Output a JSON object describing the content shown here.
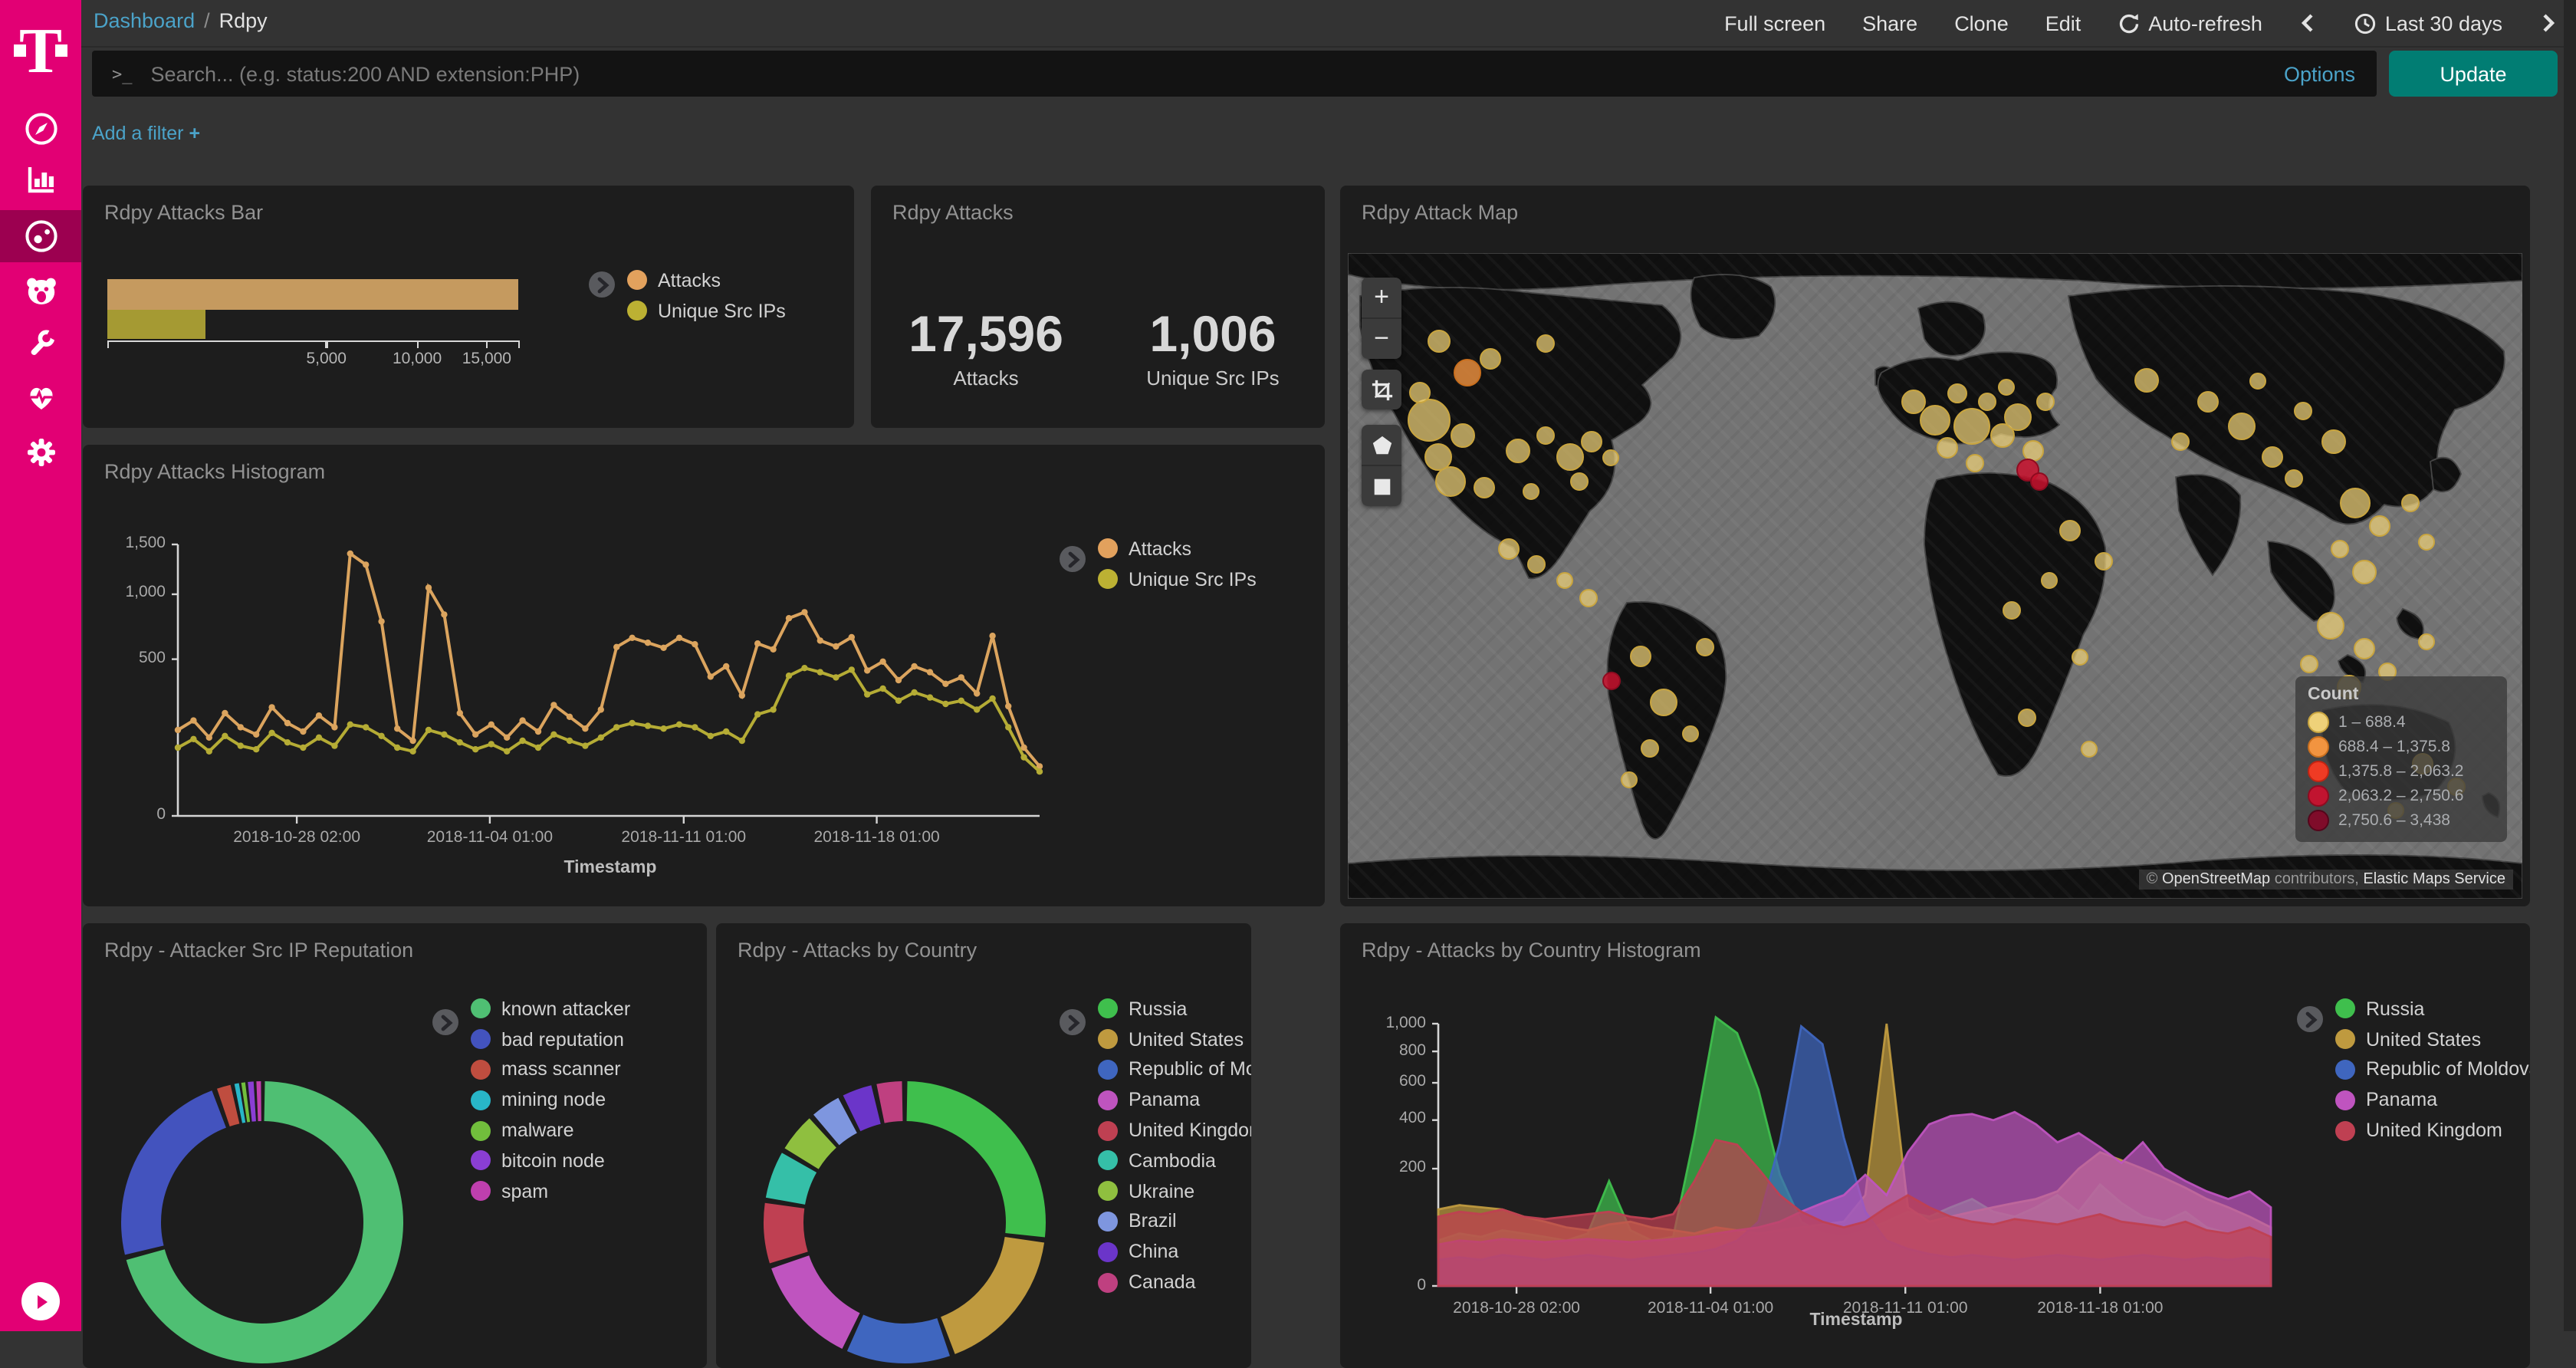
{
  "sidebar": {
    "brand": "T",
    "items": [
      {
        "id": "discover",
        "icon": "compass-icon"
      },
      {
        "id": "visualize",
        "icon": "bar-chart-icon"
      },
      {
        "id": "dashboard",
        "icon": "gauge-icon",
        "active": true
      },
      {
        "id": "hunting",
        "icon": "bear-icon"
      },
      {
        "id": "dev-tools",
        "icon": "wrench-icon"
      },
      {
        "id": "monitoring",
        "icon": "heartbeat-icon"
      },
      {
        "id": "management",
        "icon": "gear-icon"
      }
    ]
  },
  "topnav": {
    "breadcrumb": {
      "root": "Dashboard",
      "separator": "/",
      "current": "Rdpy"
    },
    "actions": [
      "Full screen",
      "Share",
      "Clone",
      "Edit"
    ],
    "auto_refresh": "Auto-refresh",
    "time_range": "Last 30 days"
  },
  "querybar": {
    "prompt": ">_",
    "placeholder": "Search... (e.g. status:200 AND extension:PHP)",
    "options_label": "Options",
    "update_label": "Update"
  },
  "filterbar": {
    "add_filter": "Add a filter",
    "plus": "+"
  },
  "panels": {
    "attacks_bar": {
      "title": "Rdpy Attacks Bar",
      "legend": [
        {
          "label": "Attacks",
          "color": "#E2A15D"
        },
        {
          "label": "Unique Src IPs",
          "color": "#BCB133"
        }
      ]
    },
    "metric": {
      "title": "Rdpy Attacks",
      "items": [
        {
          "value": "17,596",
          "label": "Attacks"
        },
        {
          "value": "1,006",
          "label": "Unique Src IPs"
        }
      ]
    },
    "map": {
      "title": "Rdpy Attack Map",
      "legend_title": "Count",
      "legend": [
        {
          "label": "1 – 688.4",
          "color": "#EED179",
          "edge": "#C9A53F"
        },
        {
          "label": "688.4 – 1,375.8",
          "color": "#F29440",
          "edge": "#C96F1E"
        },
        {
          "label": "1,375.8 – 2,063.2",
          "color": "#EF3B24",
          "edge": "#C22412"
        },
        {
          "label": "2,063.2 – 2,750.6",
          "color": "#C11430",
          "edge": "#8E0B20"
        },
        {
          "label": "2,750.6 – 3,438",
          "color": "#7F0C2A",
          "edge": "#55061B"
        }
      ],
      "attribution": {
        "copyright": "©",
        "osm": "OpenStreetMap",
        "middle": "contributors,",
        "ems": "Elastic Maps Service"
      },
      "controls": {
        "zoom_in": "+",
        "zoom_out": "−"
      }
    },
    "histogram": {
      "title": "Rdpy Attacks Histogram",
      "x_axis_label": "Timestamp",
      "legend": [
        {
          "label": "Attacks",
          "color": "#E2A15D"
        },
        {
          "label": "Unique Src IPs",
          "color": "#BCB133"
        }
      ]
    },
    "reputation": {
      "title": "Rdpy - Attacker Src IP Reputation",
      "legend": [
        {
          "label": "known attacker",
          "color": "#4FBF73"
        },
        {
          "label": "bad reputation",
          "color": "#4353BE"
        },
        {
          "label": "mass scanner",
          "color": "#BF4D3F"
        },
        {
          "label": "mining node",
          "color": "#28B6C8"
        },
        {
          "label": "malware",
          "color": "#71BE3C"
        },
        {
          "label": "bitcoin node",
          "color": "#8A3ED4"
        },
        {
          "label": "spam",
          "color": "#BF3FAE"
        }
      ]
    },
    "by_country": {
      "title": "Rdpy - Attacks by Country",
      "legend": [
        {
          "label": "Russia",
          "color": "#3FBF4D"
        },
        {
          "label": "United States",
          "color": "#BF9A3F"
        },
        {
          "label": "Republic of Moldova",
          "color": "#3F66BF"
        },
        {
          "label": "Panama",
          "color": "#BF54BF"
        },
        {
          "label": "United Kingdom",
          "color": "#BF4052"
        },
        {
          "label": "Cambodia",
          "color": "#35BFA8"
        },
        {
          "label": "Ukraine",
          "color": "#8FBF3F"
        },
        {
          "label": "Brazil",
          "color": "#7E96DF"
        },
        {
          "label": "China",
          "color": "#6B35C9"
        },
        {
          "label": "Canada",
          "color": "#BF4080"
        }
      ]
    },
    "country_histogram": {
      "title": "Rdpy - Attacks by Country Histogram",
      "x_axis_label": "Timestamp",
      "legend": [
        {
          "label": "Russia",
          "color": "#3FBF4D"
        },
        {
          "label": "United States",
          "color": "#BF9A3F"
        },
        {
          "label": "Republic of Moldova",
          "color": "#3F66BF"
        },
        {
          "label": "Panama",
          "color": "#BF54BF"
        },
        {
          "label": "United Kingdom",
          "color": "#BF4052"
        }
      ]
    }
  },
  "map_points": [
    [
      52,
      108,
      26,
      0
    ],
    [
      58,
      132,
      16,
      0
    ],
    [
      46,
      90,
      12,
      0
    ],
    [
      74,
      118,
      14,
      0
    ],
    [
      66,
      148,
      18,
      0
    ],
    [
      88,
      152,
      12,
      0
    ],
    [
      77,
      77,
      16,
      1
    ],
    [
      110,
      128,
      14,
      0
    ],
    [
      128,
      118,
      10,
      0
    ],
    [
      144,
      132,
      16,
      0
    ],
    [
      158,
      122,
      12,
      0
    ],
    [
      150,
      148,
      10,
      0
    ],
    [
      170,
      132,
      9,
      0
    ],
    [
      118,
      154,
      9,
      0
    ],
    [
      92,
      68,
      12,
      0
    ],
    [
      128,
      58,
      10,
      0
    ],
    [
      58,
      56,
      13,
      0
    ],
    [
      104,
      192,
      12,
      0
    ],
    [
      122,
      202,
      10,
      0
    ],
    [
      140,
      212,
      9,
      0
    ],
    [
      156,
      224,
      10,
      0
    ],
    [
      171,
      278,
      10,
      3
    ],
    [
      190,
      262,
      12,
      0
    ],
    [
      205,
      292,
      16,
      0
    ],
    [
      196,
      322,
      10,
      0
    ],
    [
      222,
      312,
      9,
      0
    ],
    [
      182,
      342,
      9,
      0
    ],
    [
      232,
      256,
      10,
      0
    ],
    [
      368,
      96,
      14,
      0
    ],
    [
      382,
      108,
      18,
      0
    ],
    [
      396,
      90,
      11,
      0
    ],
    [
      406,
      112,
      22,
      0
    ],
    [
      390,
      126,
      12,
      0
    ],
    [
      416,
      96,
      10,
      0
    ],
    [
      426,
      118,
      14,
      0
    ],
    [
      408,
      136,
      10,
      0
    ],
    [
      436,
      106,
      16,
      0
    ],
    [
      446,
      128,
      12,
      0
    ],
    [
      428,
      86,
      9,
      0
    ],
    [
      454,
      96,
      10,
      0
    ],
    [
      442,
      140,
      13,
      3
    ],
    [
      450,
      148,
      10,
      3
    ],
    [
      470,
      180,
      12,
      0
    ],
    [
      492,
      200,
      10,
      0
    ],
    [
      456,
      212,
      9,
      0
    ],
    [
      432,
      232,
      10,
      0
    ],
    [
      476,
      262,
      9,
      0
    ],
    [
      442,
      302,
      10,
      0
    ],
    [
      482,
      322,
      9,
      0
    ],
    [
      520,
      82,
      14,
      0
    ],
    [
      560,
      96,
      12,
      0
    ],
    [
      542,
      122,
      10,
      0
    ],
    [
      582,
      112,
      16,
      0
    ],
    [
      602,
      132,
      12,
      0
    ],
    [
      622,
      102,
      10,
      0
    ],
    [
      592,
      82,
      9,
      0
    ],
    [
      642,
      122,
      14,
      0
    ],
    [
      616,
      146,
      10,
      0
    ],
    [
      656,
      162,
      18,
      0
    ],
    [
      672,
      177,
      12,
      0
    ],
    [
      646,
      192,
      10,
      0
    ],
    [
      662,
      207,
      14,
      0
    ],
    [
      692,
      162,
      10,
      0
    ],
    [
      702,
      187,
      9,
      0
    ],
    [
      640,
      242,
      16,
      0
    ],
    [
      662,
      257,
      12,
      0
    ],
    [
      626,
      267,
      10,
      0
    ],
    [
      652,
      282,
      14,
      0
    ],
    [
      677,
      272,
      10,
      0
    ],
    [
      702,
      252,
      9,
      0
    ],
    [
      700,
      332,
      12,
      0
    ],
    [
      722,
      347,
      10,
      0
    ],
    [
      682,
      362,
      9,
      0
    ]
  ],
  "chart_data": [
    {
      "id": "attacks_bar",
      "type": "bar",
      "orientation": "horizontal",
      "x_scale": "sqrt",
      "x_max": 17596,
      "categories": [
        "Attacks",
        "Unique Src IPs"
      ],
      "values": [
        17596,
        1006
      ],
      "colors": [
        "#C59A5F",
        "#A59A33"
      ],
      "x_ticks": [
        {
          "v": 5000,
          "label": "5,000"
        },
        {
          "v": 10000,
          "label": "10,000"
        },
        {
          "v": 15000,
          "label": "15,000"
        }
      ]
    },
    {
      "id": "attacks_histogram",
      "type": "line",
      "y_scale": "sqrt",
      "ylim": [
        0,
        1500
      ],
      "y_ticks": [
        {
          "v": 0,
          "label": "0"
        },
        {
          "v": 500,
          "label": "500"
        },
        {
          "v": 1000,
          "label": "1,000"
        },
        {
          "v": 1500,
          "label": "1,500"
        }
      ],
      "x_ticks": [
        {
          "f": 0.138,
          "label": "2018-10-28 02:00"
        },
        {
          "f": 0.362,
          "label": "2018-11-04 01:00"
        },
        {
          "f": 0.587,
          "label": "2018-11-11 01:00"
        },
        {
          "f": 0.811,
          "label": "2018-11-18 01:00"
        }
      ],
      "xlabel": "Timestamp",
      "series": [
        {
          "name": "Attacks",
          "color": "#DBA45E",
          "values": [
            150,
            185,
            125,
            215,
            160,
            135,
            240,
            175,
            145,
            205,
            160,
            1400,
            1285,
            770,
            155,
            115,
            1060,
            825,
            215,
            135,
            170,
            125,
            185,
            145,
            250,
            200,
            155,
            230,
            580,
            645,
            610,
            575,
            645,
            600,
            395,
            455,
            295,
            605,
            565,
            795,
            845,
            625,
            585,
            650,
            430,
            485,
            375,
            455,
            420,
            355,
            390,
            305,
            660,
            245,
            95,
            50
          ]
        },
        {
          "name": "Unique Src IPs",
          "color": "#B5AC35",
          "values": [
            95,
            120,
            85,
            130,
            100,
            90,
            140,
            110,
            95,
            125,
            100,
            170,
            160,
            130,
            95,
            85,
            150,
            135,
            110,
            90,
            105,
            85,
            115,
            95,
            135,
            115,
            100,
            125,
            160,
            175,
            165,
            155,
            170,
            160,
            130,
            145,
            115,
            210,
            230,
            400,
            445,
            420,
            390,
            435,
            300,
            330,
            270,
            310,
            285,
            255,
            270,
            230,
            280,
            160,
            70,
            40
          ]
        }
      ]
    },
    {
      "id": "src_ip_reputation",
      "type": "pie",
      "donut": true,
      "items": [
        {
          "label": "known attacker",
          "value": 71,
          "color": "#4FBF73"
        },
        {
          "label": "bad reputation",
          "value": 23.5,
          "color": "#4353BE"
        },
        {
          "label": "mass scanner",
          "value": 2.2,
          "color": "#BF4D3F"
        },
        {
          "label": "mining node",
          "value": 0.8,
          "color": "#28B6C8"
        },
        {
          "label": "malware",
          "value": 0.7,
          "color": "#71BE3C"
        },
        {
          "label": "bitcoin node",
          "value": 1.0,
          "color": "#8A3ED4"
        },
        {
          "label": "spam",
          "value": 0.8,
          "color": "#BF3FAE"
        }
      ]
    },
    {
      "id": "attacks_by_country",
      "type": "pie",
      "donut": true,
      "items": [
        {
          "label": "Russia",
          "value": 27,
          "color": "#3FBF4D"
        },
        {
          "label": "United States",
          "value": 17.5,
          "color": "#BF9A3F"
        },
        {
          "label": "Republic of Moldova",
          "value": 12.5,
          "color": "#3F66BF"
        },
        {
          "label": "Panama",
          "value": 13,
          "color": "#BF54BF"
        },
        {
          "label": "United Kingdom",
          "value": 7.5,
          "color": "#BF4052"
        },
        {
          "label": "Cambodia",
          "value": 6,
          "color": "#35BFA8"
        },
        {
          "label": "Ukraine",
          "value": 5,
          "color": "#8FBF3F"
        },
        {
          "label": "Brazil",
          "value": 4,
          "color": "#7E96DF"
        },
        {
          "label": "China",
          "value": 4,
          "color": "#6B35C9"
        },
        {
          "label": "Canada",
          "value": 3.5,
          "color": "#BF4080"
        }
      ]
    },
    {
      "id": "attacks_by_country_histogram",
      "type": "area",
      "y_scale": "sqrt",
      "ylim": [
        0,
        1000
      ],
      "y_ticks": [
        {
          "v": 0,
          "label": "0"
        },
        {
          "v": 200,
          "label": "200"
        },
        {
          "v": 400,
          "label": "400"
        },
        {
          "v": 600,
          "label": "600"
        },
        {
          "v": 800,
          "label": "800"
        },
        {
          "v": 1000,
          "label": "1,000"
        }
      ],
      "x_ticks": [
        {
          "f": 0.094,
          "label": "2018-10-28 02:00"
        },
        {
          "f": 0.327,
          "label": "2018-11-04 01:00"
        },
        {
          "f": 0.561,
          "label": "2018-11-11 01:00"
        },
        {
          "f": 0.795,
          "label": "2018-11-18 01:00"
        }
      ],
      "xlabel": "Timestamp",
      "series": [
        {
          "name": "Russia",
          "color": "#3FBF4D",
          "values": [
            30,
            40,
            35,
            45,
            40,
            35,
            30,
            40,
            160,
            45,
            30,
            35,
            330,
            1050,
            930,
            560,
            180,
            60,
            40,
            35,
            45,
            60,
            80,
            70,
            90,
            110,
            80,
            70,
            90,
            120,
            80,
            150,
            100,
            70,
            60,
            80,
            50,
            40,
            45,
            35
          ]
        },
        {
          "name": "United States",
          "color": "#BF9A3F",
          "values": [
            85,
            95,
            90,
            85,
            70,
            60,
            50,
            45,
            55,
            60,
            50,
            45,
            40,
            50,
            45,
            40,
            45,
            50,
            55,
            60,
            120,
            1000,
            90,
            60,
            70,
            80,
            90,
            100,
            110,
            130,
            200,
            260,
            230,
            200,
            170,
            140,
            110,
            90,
            70,
            50
          ]
        },
        {
          "name": "Republic of Moldova",
          "color": "#3F66BF",
          "values": [
            10,
            12,
            10,
            14,
            12,
            10,
            12,
            14,
            12,
            10,
            12,
            14,
            16,
            20,
            30,
            60,
            300,
            980,
            850,
            320,
            80,
            30,
            20,
            15,
            12,
            14,
            12,
            10,
            12,
            14,
            12,
            10,
            12,
            14,
            12,
            10,
            12,
            10,
            12,
            10
          ]
        },
        {
          "name": "Panama",
          "color": "#BF54BF",
          "values": [
            25,
            30,
            28,
            32,
            30,
            28,
            30,
            32,
            30,
            28,
            30,
            32,
            35,
            40,
            45,
            50,
            60,
            80,
            100,
            120,
            180,
            120,
            260,
            380,
            420,
            430,
            400,
            440,
            380,
            300,
            340,
            280,
            220,
            300,
            200,
            160,
            130,
            110,
            130,
            90
          ]
        },
        {
          "name": "United Kingdom",
          "color": "#BF4052",
          "values": [
            70,
            80,
            75,
            85,
            70,
            65,
            70,
            75,
            80,
            70,
            65,
            75,
            160,
            310,
            290,
            200,
            120,
            80,
            60,
            50,
            60,
            90,
            120,
            90,
            70,
            60,
            55,
            65,
            60,
            55,
            65,
            75,
            60,
            55,
            50,
            60,
            45,
            40,
            50,
            35
          ]
        }
      ]
    }
  ]
}
